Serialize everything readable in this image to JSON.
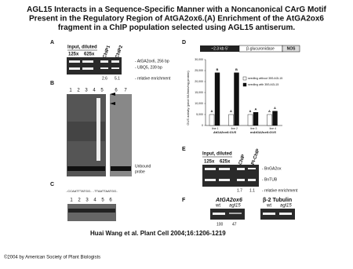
{
  "header": {
    "title": "AGL15 Interacts in a Sequence-Specific Manner with a Noncanonical CArG Motif Present in the Regulatory Region of AtGA2ox6.(A) Enrichment of the AtGA2ox6 fragment in a ChIP population selected using AGL15 antiserum."
  },
  "panel_a": {
    "label": "A",
    "input": "Input, diluted",
    "dilutions": [
      "125x",
      "625x"
    ],
    "lanes": [
      "ChIP1",
      "ChIP2"
    ],
    "bands": [
      "- AtGA2ox6, 256 bp",
      "- UBQ5, 239 bp"
    ],
    "enrichment": [
      2.6,
      5.1
    ],
    "enrichment_label": "- relative enrichment"
  },
  "panel_b": {
    "label": "B",
    "lanes": [
      "1",
      "2",
      "3",
      "4",
      "5",
      "6",
      "7"
    ],
    "unbound": [
      "Unbound",
      "probe"
    ]
  },
  "panel_c": {
    "label": "C",
    "sequences": [
      "..CCAATTTATGG..",
      "..TTAATTAATGG.."
    ],
    "lanes": [
      "1",
      "2",
      "3",
      "4",
      "5",
      "6"
    ]
  },
  "panel_d": {
    "label": "D",
    "construct": [
      "~2.3 kb 5'",
      "β-glucuronidase",
      "NOS"
    ],
    "y_label": "GUS activity (pmol MU/min/mg protein)",
    "ylim": [
      0,
      30000
    ],
    "yticks": [
      0,
      {
        "value": 5000,
        "label": "5,000"
      },
      {
        "value": 10000,
        "label": "10,000"
      },
      {
        "value": 15000,
        "label": "15,000"
      },
      {
        "value": 20000,
        "label": "20,000"
      },
      {
        "value": 25000,
        "label": "25,000"
      },
      {
        "value": 30000,
        "label": "30,000"
      }
    ],
    "categories": [
      "line 1",
      "line 2",
      "line 3",
      "line 4"
    ],
    "groups": [
      "AtGA2ox6:GUS",
      "mAtGA2ox6:GUS"
    ],
    "series": [
      {
        "name": "seedling without 35S:AGL15",
        "color": "#ffffff",
        "values": [
          5000,
          5000,
          5000,
          5000
        ],
        "letters": [
          "A",
          "A",
          "A",
          "A"
        ]
      },
      {
        "name": "seedling with 35S:AGL15",
        "color": "#111111",
        "values": [
          24000,
          24000,
          6000,
          6500
        ],
        "letters": [
          "B",
          "B",
          "A",
          "A"
        ]
      }
    ]
  },
  "panel_e": {
    "label": "E",
    "input": "Input, diluted",
    "dilutions": [
      "125x",
      "625x"
    ],
    "lanes": [
      "ChIP",
      "PI-ChIP"
    ],
    "bands": [
      "- BnGA2ox",
      "- BnTUB"
    ],
    "enrichment": [
      1.7,
      1.1
    ],
    "enrichment_label": "- relative enrichment"
  },
  "panel_f": {
    "label": "F",
    "genes": [
      "AtGA2ox6",
      "β-2 Tubulin"
    ],
    "lanes": [
      "wt",
      "agl15",
      "wt",
      "agl15"
    ],
    "values": [
      100,
      47
    ]
  },
  "citation": "Huai Wang et al. Plant Cell 2004;16:1206-1219",
  "footer": "©2004 by American Society of Plant Biologists"
}
